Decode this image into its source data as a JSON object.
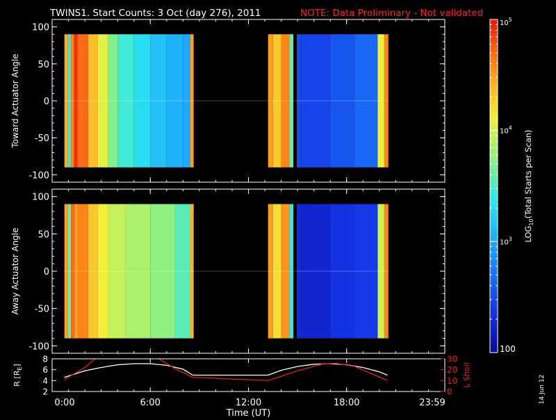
{
  "header": {
    "title": "TWINS1. Start Counts:  3 Oct (day 276), 2011",
    "note": "NOTE: Data Preliminary - Not validated"
  },
  "side_stamp": "14 Jun 12",
  "colors": {
    "background": "#000000",
    "axes": "#ffffff",
    "note": "#ff2020",
    "lshell": "#e02020",
    "radius": "#ffffff"
  },
  "chart_data": [
    {
      "type": "heatmap",
      "panel": "top",
      "ylabel": "Toward Actuator Angle",
      "xlim": [
        0,
        24
      ],
      "ylim": [
        -110,
        110
      ],
      "y_ticks": [
        100,
        50,
        0,
        -50,
        -100
      ],
      "y_tick_labels": [
        "100",
        "50",
        "0",
        "-50",
        "-100"
      ],
      "data_y_range": [
        -90,
        90
      ],
      "color_scale": "log",
      "strips": [
        {
          "t0": 0.75,
          "t1": 0.95,
          "log": 4.45
        },
        {
          "t0": 0.95,
          "t1": 1.15,
          "log": 3.4
        },
        {
          "t0": 1.15,
          "t1": 1.35,
          "log": 4.6
        },
        {
          "t0": 1.35,
          "t1": 1.55,
          "log": 4.9
        },
        {
          "t0": 1.55,
          "t1": 2.2,
          "log": 4.7
        },
        {
          "t0": 2.2,
          "t1": 2.8,
          "log": 4.35
        },
        {
          "t0": 2.8,
          "t1": 3.4,
          "log": 4.05
        },
        {
          "t0": 3.4,
          "t1": 4.0,
          "log": 3.7
        },
        {
          "t0": 4.0,
          "t1": 5.0,
          "log": 3.45
        },
        {
          "t0": 5.0,
          "t1": 6.0,
          "log": 3.3
        },
        {
          "t0": 6.0,
          "t1": 7.0,
          "log": 3.15
        },
        {
          "t0": 7.0,
          "t1": 8.0,
          "log": 3.05
        },
        {
          "t0": 8.0,
          "t1": 8.45,
          "log": 3.0
        },
        {
          "t0": 8.45,
          "t1": 8.65,
          "log": 4.5
        },
        {
          "t0": 13.2,
          "t1": 13.5,
          "log": 4.5
        },
        {
          "t0": 13.5,
          "t1": 14.0,
          "log": 4.3
        },
        {
          "t0": 14.0,
          "t1": 14.5,
          "log": 4.6
        },
        {
          "t0": 14.5,
          "t1": 14.75,
          "log": 3.6
        },
        {
          "t0": 14.75,
          "t1": 14.95,
          "log": 0
        },
        {
          "t0": 14.95,
          "t1": 15.2,
          "log": 2.5
        },
        {
          "t0": 15.2,
          "t1": 17.0,
          "log": 2.45
        },
        {
          "t0": 17.0,
          "t1": 18.5,
          "log": 2.55
        },
        {
          "t0": 18.5,
          "t1": 19.9,
          "log": 2.65
        },
        {
          "t0": 19.9,
          "t1": 20.3,
          "log": 4.1
        },
        {
          "t0": 20.3,
          "t1": 20.55,
          "log": 4.6
        }
      ]
    },
    {
      "type": "heatmap",
      "panel": "bottom",
      "ylabel": "Away Actuator Angle",
      "xlim": [
        0,
        24
      ],
      "ylim": [
        -110,
        110
      ],
      "y_ticks": [
        100,
        50,
        0,
        -50,
        -100
      ],
      "y_tick_labels": [
        "100",
        "50",
        "0",
        "-50",
        "-100"
      ],
      "data_y_range": [
        -90,
        90
      ],
      "color_scale": "log",
      "strips": [
        {
          "t0": 0.75,
          "t1": 0.95,
          "log": 4.5
        },
        {
          "t0": 0.95,
          "t1": 1.15,
          "log": 3.6
        },
        {
          "t0": 1.15,
          "t1": 1.35,
          "log": 4.7
        },
        {
          "t0": 1.35,
          "t1": 1.55,
          "log": 4.5
        },
        {
          "t0": 1.55,
          "t1": 2.2,
          "log": 4.6
        },
        {
          "t0": 2.2,
          "t1": 2.8,
          "log": 4.3
        },
        {
          "t0": 2.8,
          "t1": 3.4,
          "log": 4.1
        },
        {
          "t0": 3.4,
          "t1": 4.5,
          "log": 3.95
        },
        {
          "t0": 4.5,
          "t1": 6.0,
          "log": 3.85
        },
        {
          "t0": 6.0,
          "t1": 7.5,
          "log": 3.75
        },
        {
          "t0": 7.5,
          "t1": 8.45,
          "log": 3.55
        },
        {
          "t0": 8.45,
          "t1": 8.65,
          "log": 4.4
        },
        {
          "t0": 13.2,
          "t1": 13.5,
          "log": 4.5
        },
        {
          "t0": 13.5,
          "t1": 14.0,
          "log": 4.2
        },
        {
          "t0": 14.0,
          "t1": 14.5,
          "log": 4.55
        },
        {
          "t0": 14.5,
          "t1": 14.75,
          "log": 3.4
        },
        {
          "t0": 14.75,
          "t1": 14.95,
          "log": 0
        },
        {
          "t0": 14.95,
          "t1": 15.2,
          "log": 2.3
        },
        {
          "t0": 15.2,
          "t1": 17.0,
          "log": 2.25
        },
        {
          "t0": 17.0,
          "t1": 18.5,
          "log": 2.35
        },
        {
          "t0": 18.5,
          "t1": 19.9,
          "log": 2.4
        },
        {
          "t0": 19.9,
          "t1": 20.3,
          "log": 4.0
        },
        {
          "t0": 20.3,
          "t1": 20.55,
          "log": 4.6
        }
      ]
    },
    {
      "type": "line",
      "panel": "orbit",
      "xlabel": "Time (UT)",
      "x_ticks": [
        0,
        6,
        12,
        18,
        24
      ],
      "x_tick_labels": [
        "0:00",
        "6:00",
        "12:00",
        "18:00",
        "23:59"
      ],
      "xlim": [
        0,
        24
      ],
      "left_axis": {
        "label": "R [R_E]",
        "label_main": "R [R",
        "label_sub": "E",
        "label_end": "]",
        "ylim": [
          2,
          8
        ],
        "ticks": [
          2,
          4,
          6,
          8
        ]
      },
      "right_axis": {
        "label": "L Shell",
        "ylim": [
          0,
          30
        ],
        "ticks": [
          0,
          10,
          20,
          30
        ]
      },
      "series": [
        {
          "axis": "left",
          "x": [
            0.75,
            2,
            3,
            4,
            5,
            6,
            7,
            8,
            8.6,
            10,
            12,
            13.2,
            14,
            15,
            16,
            17,
            18,
            19,
            20,
            20.5
          ],
          "y": [
            4.6,
            5.8,
            6.4,
            6.9,
            7.1,
            7.1,
            6.8,
            6.1,
            5.0,
            5.0,
            5.0,
            5.0,
            5.9,
            6.6,
            7.0,
            7.1,
            6.9,
            6.4,
            5.6,
            5.0
          ]
        },
        {
          "axis": "right",
          "x": [
            0.75,
            2,
            2.7,
            6.4,
            7.5,
            8.6,
            13.2,
            15,
            16.5,
            17.3,
            18.5,
            20.5
          ],
          "y": [
            11,
            22,
            31,
            31,
            21,
            13,
            10,
            19,
            25,
            26,
            23,
            10
          ]
        }
      ]
    }
  ],
  "colorbar": {
    "label": "LOG10(Total Starts per Scan)",
    "label_pre": "LOG",
    "label_sub": "10",
    "label_post": "(Total Starts per Scan)",
    "range_log": [
      2,
      5
    ],
    "ticks": [
      {
        "log": 5,
        "base": "10",
        "exp": "5"
      },
      {
        "log": 4,
        "base": "10",
        "exp": "4"
      },
      {
        "log": 3,
        "base": "10",
        "exp": "3"
      },
      {
        "log": 2,
        "base": "100",
        "exp": ""
      }
    ]
  }
}
